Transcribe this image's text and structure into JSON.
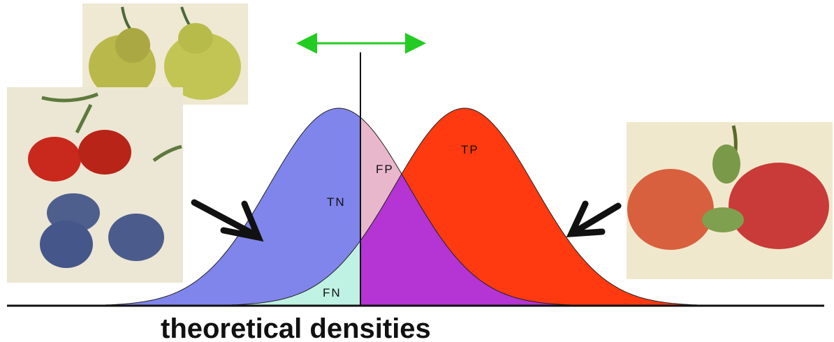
{
  "labels": {
    "tn": "TN",
    "fp": "FP",
    "tp": "TP",
    "fn": "FN"
  },
  "caption": "theoretical densities"
}
